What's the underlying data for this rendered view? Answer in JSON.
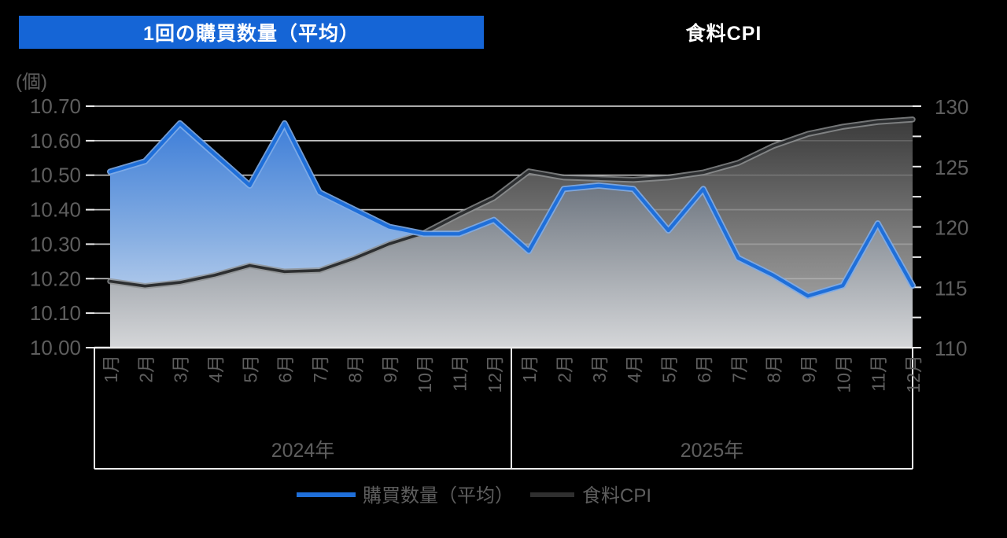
{
  "page": {
    "background_color": "#000000"
  },
  "header": {
    "left_chart_title": "1回の購買数量（平均）",
    "right_chart_title": "食料CPI"
  },
  "chart_data": {
    "type": "area",
    "title_left": "1回の購買数量（平均）",
    "title_right": "食料CPI",
    "categories_months": [
      "1月",
      "2月",
      "3月",
      "4月",
      "5月",
      "6月",
      "7月",
      "8月",
      "9月",
      "10月",
      "11月",
      "12月"
    ],
    "year_groups": [
      {
        "label": "2024年"
      },
      {
        "label": "2025年"
      }
    ],
    "series": [
      {
        "name": "購買数量（平均）",
        "axis": "left",
        "type": "area",
        "values": [
          10.51,
          10.54,
          10.65,
          10.56,
          10.47,
          10.65,
          10.45,
          10.4,
          10.35,
          10.33,
          10.33,
          10.37,
          10.28,
          10.46,
          10.47,
          10.46,
          10.34,
          10.46,
          10.26,
          10.21,
          10.15,
          10.18,
          10.36,
          10.18
        ]
      },
      {
        "name": "食料CPI",
        "axis": "right",
        "type": "area",
        "values": [
          115.5,
          115.1,
          115.4,
          116.0,
          116.8,
          116.3,
          116.4,
          117.4,
          118.6,
          119.5,
          121.0,
          122.4,
          124.6,
          124.1,
          124.0,
          123.9,
          124.1,
          124.5,
          125.3,
          126.7,
          127.7,
          128.3,
          128.7,
          128.9
        ]
      }
    ],
    "left_axis": {
      "unit_label": "(個)",
      "min": 10.0,
      "max": 10.7,
      "step": 0.1,
      "tick_labels": [
        "10.00",
        "10.10",
        "10.20",
        "10.30",
        "10.40",
        "10.50",
        "10.60",
        "10.70"
      ]
    },
    "right_axis": {
      "min": 110,
      "max": 130,
      "label_step": 5,
      "tick_step": 2.5,
      "tick_labels": [
        "110",
        "115",
        "120",
        "125",
        "130"
      ]
    },
    "legend": [
      {
        "label": "購買数量（平均）",
        "color": "#1F6FD9"
      },
      {
        "label": "食料CPI",
        "color": "#2F2F2F"
      }
    ],
    "grid": "on",
    "legend_position": "bottom",
    "colors": {
      "background": "#000000",
      "title_bar": "#1565D6",
      "title_text": "#FFFFFF",
      "axis_text": "#5E5E5E",
      "grid": "#D9D9D9",
      "axis_line": "#ECECEC",
      "quantity_line": "#1F6FD9",
      "quantity_halo": "#7FACE8",
      "quantity_fill_top": "#3E7ED8",
      "quantity_fill_mid": "#86AEE2",
      "quantity_fill_bottom": "#D9E4F4",
      "cpi_line": "#2D2F31",
      "cpi_halo": "#909294",
      "cpi_fill_top": "#454545",
      "cpi_fill_mid": "#8F8F8F",
      "cpi_fill_bottom": "#D4D4D4"
    }
  }
}
